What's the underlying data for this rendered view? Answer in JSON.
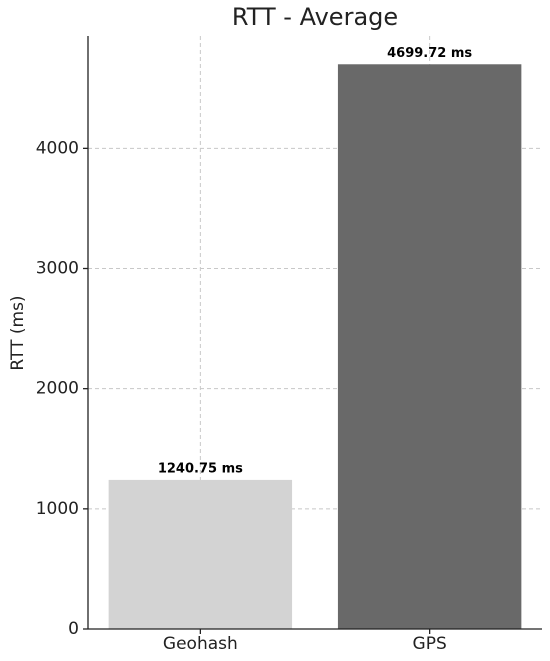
{
  "chart_data": {
    "type": "bar",
    "title": "RTT - Average",
    "y_label": "RTT (ms)",
    "categories": [
      "Geohash",
      "GPS"
    ],
    "values": [
      1240.75,
      4699.72
    ],
    "value_labels": [
      "1240.75 ms",
      "4699.72 ms"
    ],
    "colors": [
      "#d3d3d3",
      "#696969"
    ],
    "ylim": [
      0,
      4935
    ],
    "yticks": [
      0,
      1000,
      2000,
      3000,
      4000
    ],
    "grid": true
  }
}
